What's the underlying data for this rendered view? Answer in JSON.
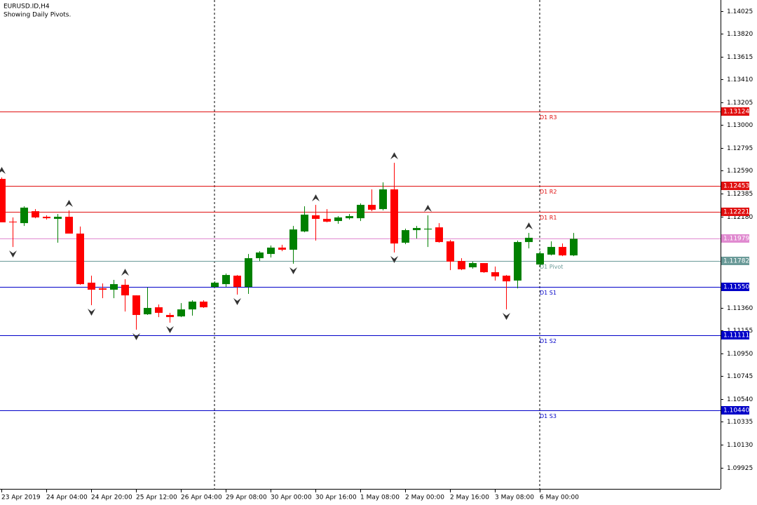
{
  "chart_data": {
    "type": "candlestick",
    "title": "EURUSD.ID,H4",
    "subtitle": "Showing Daily Pivots.",
    "categories": [
      "23 Apr 2019",
      null,
      null,
      null,
      "24 Apr 04:00",
      null,
      null,
      null,
      "24 Apr 20:00",
      null,
      null,
      null,
      "25 Apr 12:00",
      null,
      null,
      null,
      "26 Apr 04:00",
      null,
      null,
      null,
      "29 Apr 08:00",
      null,
      null,
      null,
      "30 Apr 00:00",
      null,
      null,
      null,
      "30 Apr 16:00",
      null,
      null,
      null,
      "1 May 08:00",
      null,
      null,
      null,
      "2 May 00:00",
      null,
      null,
      null,
      "2 May 16:00",
      null,
      null,
      null,
      "3 May 08:00",
      null,
      null,
      null,
      "6 May 00:00",
      null,
      null,
      null
    ],
    "open": [
      1.12517,
      1.12133,
      1.1212,
      1.12227,
      1.12177,
      1.12158,
      1.12177,
      1.12026,
      1.11585,
      1.11534,
      1.11522,
      1.11566,
      1.11471,
      1.11301,
      1.11364,
      1.11295,
      1.11282,
      1.11345,
      1.11415,
      1.11547,
      1.11572,
      1.11648,
      1.11547,
      1.11805,
      1.11843,
      1.119,
      1.11881,
      1.12045,
      1.1219,
      1.12158,
      1.12139,
      1.12164,
      1.12164,
      1.12284,
      1.12246,
      1.12423,
      1.11944,
      1.12057,
      1.12063,
      1.12082,
      1.11956,
      1.1178,
      1.11723,
      1.11761,
      1.11679,
      1.11648,
      1.11604,
      1.1195,
      1.11748,
      1.11837,
      1.11906,
      1.1183
    ],
    "high": [
      1.1253,
      1.12171,
      1.12271,
      1.12246,
      1.1219,
      1.12202,
      1.12234,
      1.12089,
      1.11648,
      1.11578,
      1.1161,
      1.11616,
      1.11471,
      1.11541,
      1.11389,
      1.11314,
      1.11402,
      1.11427,
      1.11427,
      1.11597,
      1.11667,
      1.11654,
      1.11843,
      1.11868,
      1.11919,
      1.11925,
      1.12095,
      1.12271,
      1.12284,
      1.12246,
      1.12183,
      1.12202,
      1.12297,
      1.12423,
      1.12486,
      1.12662,
      1.1207,
      1.12095,
      1.1219,
      1.1212,
      1.11969,
      1.11805,
      1.11774,
      1.11761,
      1.1173,
      1.11654,
      1.11963,
      1.12032,
      1.11868,
      1.11956,
      1.11937,
      1.12032
    ],
    "low": [
      1.12127,
      1.11906,
      1.12095,
      1.12164,
      1.12152,
      1.11944,
      1.12026,
      1.11566,
      1.11383,
      1.11446,
      1.11446,
      1.11326,
      1.11163,
      1.11295,
      1.11276,
      1.11226,
      1.11276,
      1.11289,
      1.11358,
      1.11541,
      1.11547,
      1.11478,
      1.11484,
      1.1178,
      1.11811,
      1.11868,
      1.11755,
      1.12038,
      1.11963,
      1.12127,
      1.12114,
      1.12152,
      1.12139,
      1.12227,
      1.12234,
      1.11856,
      1.11931,
      1.11982,
      1.11906,
      1.11944,
      1.11698,
      1.11698,
      1.11711,
      1.11673,
      1.11604,
      1.11345,
      1.11534,
      1.11893,
      1.1173,
      1.1183,
      1.11824,
      1.11824
    ],
    "close": [
      1.12127,
      1.12127,
      1.12259,
      1.12171,
      1.12164,
      1.12177,
      1.12026,
      1.11572,
      1.11522,
      1.11522,
      1.11572,
      1.11471,
      1.11295,
      1.11358,
      1.11314,
      1.11276,
      1.11345,
      1.11415,
      1.11364,
      1.11585,
      1.11654,
      1.11547,
      1.11805,
      1.11856,
      1.119,
      1.11881,
      1.12063,
      1.12196,
      1.12158,
      1.12133,
      1.12171,
      1.12183,
      1.12284,
      1.1224,
      1.12423,
      1.11937,
      1.12057,
      1.12076,
      1.1207,
      1.1195,
      1.11774,
      1.11705,
      1.11761,
      1.11679,
      1.11641,
      1.11597,
      1.1195,
      1.11988,
      1.11849,
      1.11906,
      1.1183,
      1.11979
    ],
    "fractal": [
      "up",
      "down",
      null,
      null,
      null,
      null,
      "up",
      null,
      "down",
      null,
      null,
      "up",
      "down",
      null,
      null,
      "down",
      null,
      null,
      null,
      null,
      null,
      "down",
      null,
      null,
      null,
      null,
      "down",
      null,
      "up",
      null,
      null,
      null,
      null,
      null,
      null,
      "both",
      null,
      null,
      "up",
      null,
      null,
      null,
      null,
      null,
      null,
      "down",
      null,
      "up",
      null,
      null,
      null,
      null
    ],
    "up_color": "#008000",
    "down_color": "#ff0000",
    "fractal_color": "#333333",
    "levels": [
      {
        "name": "D1 R3",
        "value": 1.13124,
        "color": "#e01010"
      },
      {
        "name": "D1 R2",
        "value": 1.12453,
        "color": "#e01010"
      },
      {
        "name": "D1 R1",
        "value": 1.12221,
        "color": "#e01010"
      },
      {
        "name": "D1 Pivot",
        "value": 1.11782,
        "color": "#6a9a98"
      },
      {
        "name": "D1 S1",
        "value": 1.1155,
        "value_label": "1.11550",
        "color": "#0000c8"
      },
      {
        "name": "D1 S2",
        "value": 1.11111,
        "color": "#0000c8"
      },
      {
        "name": "D1 S3",
        "value": 1.1044,
        "value_label": "1.10440",
        "color": "#0000c8"
      }
    ],
    "bid": {
      "value": 1.11979,
      "color": "#e08ad0"
    },
    "ylim": [
      1.09733,
      1.14124
    ],
    "yticks": [
      1.14025,
      {
        "value": 1.1382,
        "label": "1.13820"
      },
      1.13615,
      {
        "value": 1.1341,
        "label": "1.13410"
      },
      1.13205,
      {
        "value": 1.13,
        "label": "1.13000"
      },
      1.12795,
      {
        "value": 1.1259,
        "label": "1.12590"
      },
      1.12385,
      {
        "value": 1.1218,
        "label": "1.12180"
      },
      {
        "value": 1.1136,
        "label": "1.11360"
      },
      1.11155,
      {
        "value": 1.1095,
        "label": "1.10950"
      },
      1.10745,
      {
        "value": 1.1054,
        "label": "1.10540"
      },
      1.10335,
      {
        "value": 1.1013,
        "label": "1.10130"
      },
      1.09925
    ],
    "grid": false
  }
}
